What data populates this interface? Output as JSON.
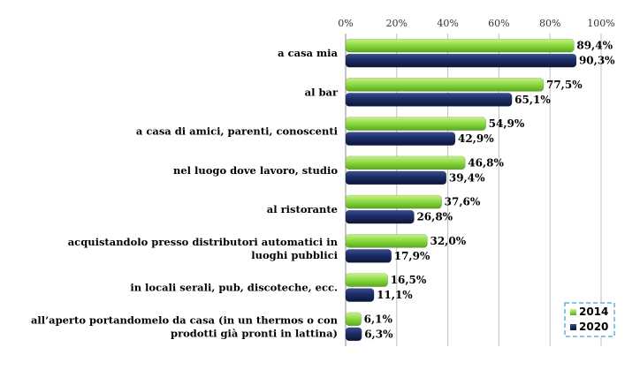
{
  "chart_data": {
    "type": "bar",
    "orientation": "horizontal",
    "categories": [
      [
        "a casa mia"
      ],
      [
        "al bar"
      ],
      [
        "a casa di amici, parenti, conoscenti"
      ],
      [
        "nel luogo dove lavoro, studio"
      ],
      [
        "al ristorante"
      ],
      [
        "acquistandolo presso distributori automatici in",
        "luoghi pubblici"
      ],
      [
        "in locali serali, pub, discoteche, ecc."
      ],
      [
        "all’aperto portandomelo da casa (in un thermos o con",
        "prodotti già pronti in lattina)"
      ]
    ],
    "series": [
      {
        "name": "2014",
        "color": "#7fd13b",
        "values": [
          89.4,
          77.5,
          54.9,
          46.8,
          37.6,
          32.0,
          16.5,
          6.1
        ],
        "labels": [
          "89,4%",
          "77,5%",
          "54,9%",
          "46,8%",
          "37,6%",
          "32,0%",
          "16,5%",
          "6,1%"
        ]
      },
      {
        "name": "2020",
        "color": "#1a2a5e",
        "values": [
          90.3,
          65.1,
          42.9,
          39.4,
          26.8,
          17.9,
          11.1,
          6.3
        ],
        "labels": [
          "90,3%",
          "65,1%",
          "42,9%",
          "39,4%",
          "26,8%",
          "17,9%",
          "11,1%",
          "6,3%"
        ]
      }
    ],
    "xlim": [
      0,
      100
    ],
    "xticks": [
      "0%",
      "20%",
      "40%",
      "60%",
      "80%",
      "100%"
    ],
    "grid": true,
    "legend_position": "bottom-right"
  }
}
